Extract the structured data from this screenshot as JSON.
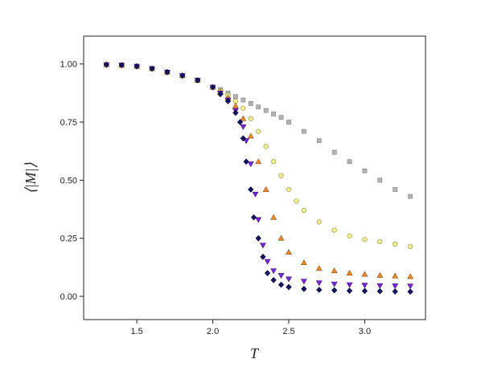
{
  "chart_data": {
    "type": "scatter",
    "xlabel": "T",
    "ylabel": "⟨|M|⟩",
    "xlim": [
      1.15,
      3.4
    ],
    "ylim": [
      -0.1,
      1.12
    ],
    "xticks": [
      "1.5",
      "2.0",
      "2.5",
      "3.0"
    ],
    "yticks": [
      "0.00",
      "0.25",
      "0.50",
      "0.75",
      "1.00"
    ],
    "grid": false,
    "legend": "none",
    "series": [
      {
        "marker": "square",
        "color": "#b4b4b4",
        "stroke": "#808080",
        "x": [
          1.3,
          1.4,
          1.5,
          1.6,
          1.7,
          1.8,
          1.9,
          2.0,
          2.05,
          2.1,
          2.15,
          2.2,
          2.25,
          2.3,
          2.35,
          2.4,
          2.45,
          2.5,
          2.6,
          2.7,
          2.8,
          2.9,
          3.0,
          3.1,
          3.2,
          3.3
        ],
        "y": [
          0.997,
          0.995,
          0.99,
          0.98,
          0.965,
          0.95,
          0.93,
          0.9,
          0.89,
          0.875,
          0.86,
          0.845,
          0.83,
          0.815,
          0.8,
          0.785,
          0.77,
          0.75,
          0.71,
          0.67,
          0.62,
          0.58,
          0.54,
          0.5,
          0.46,
          0.43
        ]
      },
      {
        "marker": "circle",
        "color": "#f4f290",
        "stroke": "#8a8a40",
        "x": [
          1.3,
          1.4,
          1.5,
          1.6,
          1.7,
          1.8,
          1.9,
          2.0,
          2.05,
          2.1,
          2.15,
          2.2,
          2.25,
          2.3,
          2.35,
          2.4,
          2.45,
          2.5,
          2.55,
          2.6,
          2.7,
          2.8,
          2.9,
          3.0,
          3.1,
          3.2,
          3.3
        ],
        "y": [
          0.997,
          0.995,
          0.99,
          0.98,
          0.965,
          0.95,
          0.93,
          0.9,
          0.885,
          0.865,
          0.84,
          0.81,
          0.765,
          0.71,
          0.645,
          0.58,
          0.52,
          0.46,
          0.41,
          0.37,
          0.32,
          0.285,
          0.26,
          0.245,
          0.235,
          0.225,
          0.215
        ]
      },
      {
        "marker": "triangle-up",
        "color": "#f08a2a",
        "stroke": "#8a4a10",
        "x": [
          1.3,
          1.4,
          1.5,
          1.6,
          1.7,
          1.8,
          1.9,
          2.0,
          2.05,
          2.1,
          2.15,
          2.2,
          2.25,
          2.3,
          2.35,
          2.4,
          2.45,
          2.5,
          2.6,
          2.7,
          2.8,
          2.9,
          3.0,
          3.1,
          3.2,
          3.3
        ],
        "y": [
          0.997,
          0.995,
          0.99,
          0.98,
          0.965,
          0.95,
          0.93,
          0.9,
          0.88,
          0.855,
          0.82,
          0.765,
          0.69,
          0.58,
          0.46,
          0.34,
          0.25,
          0.19,
          0.145,
          0.12,
          0.11,
          0.1,
          0.095,
          0.09,
          0.088,
          0.085
        ]
      },
      {
        "marker": "triangle-down",
        "color": "#7a28d8",
        "stroke": "#3a0a70",
        "x": [
          1.3,
          1.4,
          1.5,
          1.6,
          1.7,
          1.8,
          1.9,
          2.0,
          2.05,
          2.1,
          2.15,
          2.2,
          2.22,
          2.25,
          2.28,
          2.3,
          2.33,
          2.36,
          2.4,
          2.45,
          2.5,
          2.6,
          2.7,
          2.8,
          2.9,
          3.0,
          3.1,
          3.2,
          3.3
        ],
        "y": [
          0.997,
          0.995,
          0.99,
          0.98,
          0.965,
          0.95,
          0.93,
          0.9,
          0.875,
          0.845,
          0.8,
          0.73,
          0.67,
          0.57,
          0.44,
          0.33,
          0.22,
          0.15,
          0.11,
          0.09,
          0.075,
          0.065,
          0.058,
          0.053,
          0.05,
          0.048,
          0.046,
          0.045,
          0.044
        ]
      },
      {
        "marker": "diamond",
        "color": "#141464",
        "stroke": "#000030",
        "x": [
          1.3,
          1.4,
          1.5,
          1.6,
          1.7,
          1.8,
          1.9,
          2.0,
          2.05,
          2.1,
          2.15,
          2.18,
          2.2,
          2.22,
          2.25,
          2.27,
          2.3,
          2.33,
          2.36,
          2.4,
          2.45,
          2.5,
          2.6,
          2.7,
          2.8,
          2.9,
          3.0,
          3.1,
          3.2,
          3.3
        ],
        "y": [
          0.997,
          0.995,
          0.99,
          0.98,
          0.965,
          0.95,
          0.93,
          0.9,
          0.87,
          0.84,
          0.79,
          0.75,
          0.68,
          0.58,
          0.46,
          0.34,
          0.25,
          0.17,
          0.1,
          0.07,
          0.05,
          0.04,
          0.032,
          0.028,
          0.026,
          0.024,
          0.023,
          0.022,
          0.021,
          0.02
        ]
      }
    ]
  }
}
